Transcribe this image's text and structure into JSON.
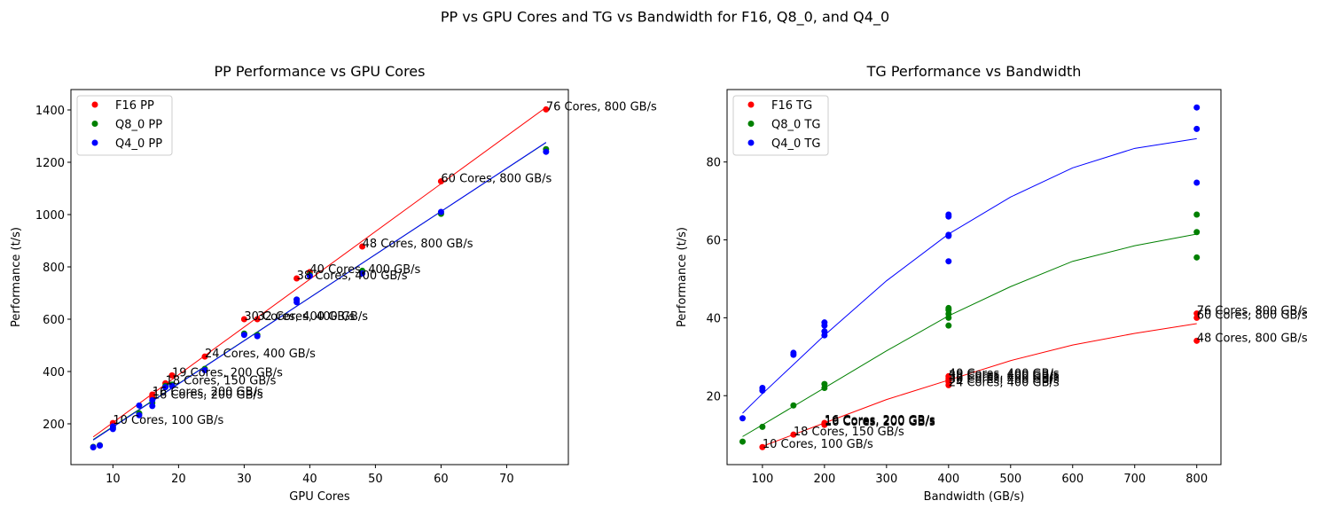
{
  "title": "PP vs GPU Cores and TG vs Bandwidth for F16, Q8_0, and Q4_0",
  "chart_data": [
    {
      "type": "scatter",
      "title": "PP Performance vs GPU Cores",
      "xlabel": "GPU Cores",
      "ylabel": "Performance (t/s)",
      "xlim": [
        3.6,
        79.4
      ],
      "ylim": [
        44,
        1478
      ],
      "xticks": [
        10,
        20,
        30,
        40,
        50,
        60,
        70
      ],
      "yticks": [
        200,
        400,
        600,
        800,
        1000,
        1200,
        1400
      ],
      "legend": "upper left",
      "series": [
        {
          "name": "F16 PP",
          "color": "#ff0000",
          "x": [
            10,
            16,
            16,
            18,
            19,
            24,
            30,
            32,
            38,
            40,
            48,
            60,
            76
          ],
          "values": [
            203,
            312,
            300,
            355,
            385,
            457,
            600,
            600,
            756,
            780,
            878,
            1127,
            1402
          ],
          "labels": [
            "10 Cores, 100 GB/s",
            "16 Cores, 200 GB/s",
            "16 Cores, 200 GB/s",
            "18 Cores, 150 GB/s",
            "19 Cores, 200 GB/s",
            "24 Cores, 400 GB/s",
            "30 Cores, 400 GB/s",
            "32 Cores, 400 GB/s",
            "38 Cores, 400 GB/s",
            "40 Cores, 400 GB/s",
            "48 Cores, 800 GB/s",
            "60 Cores, 800 GB/s",
            "76 Cores, 800 GB/s"
          ]
        },
        {
          "name": "Q8_0 PP",
          "color": "#008000",
          "x": [
            7,
            8,
            10,
            14,
            16,
            18,
            19,
            24,
            30,
            32,
            38,
            40,
            48,
            60,
            76
          ],
          "values": [
            112,
            118,
            185,
            240,
            280,
            345,
            350,
            410,
            545,
            540,
            675,
            770,
            785,
            1003,
            1250
          ]
        },
        {
          "name": "Q4_0 PP",
          "color": "#0000ff",
          "x": [
            7,
            8,
            10,
            10,
            14,
            14,
            16,
            16,
            18,
            19,
            24,
            30,
            32,
            38,
            38,
            40,
            48,
            60,
            76
          ],
          "values": [
            110,
            117,
            180,
            190,
            233,
            270,
            268,
            290,
            340,
            345,
            405,
            540,
            535,
            665,
            675,
            765,
            775,
            1010,
            1240
          ]
        }
      ],
      "fits": [
        {
          "color": "#ff0000",
          "x": [
            7,
            76
          ],
          "values": [
            150,
            1410
          ]
        },
        {
          "color": "#008000",
          "x": [
            7,
            76
          ],
          "values": [
            140,
            1275
          ]
        },
        {
          "color": "#0000ff",
          "x": [
            7,
            76
          ],
          "values": [
            138,
            1276
          ]
        }
      ]
    },
    {
      "type": "scatter",
      "title": "TG Performance vs Bandwidth",
      "xlabel": "Bandwidth (GB/s)",
      "ylabel": "Performance (t/s)",
      "xlim": [
        43,
        839
      ],
      "ylim": [
        2.3,
        98.6
      ],
      "xticks": [
        100,
        200,
        300,
        400,
        500,
        600,
        700,
        800
      ],
      "yticks": [
        20,
        40,
        60,
        80
      ],
      "legend": "upper left",
      "series": [
        {
          "name": "F16 TG",
          "color": "#ff0000",
          "x": [
            100,
            200,
            200,
            150,
            200,
            400,
            400,
            400,
            400,
            400,
            800,
            800,
            800
          ],
          "values": [
            6.8,
            13,
            12.5,
            10,
            12.8,
            22.7,
            23.5,
            24,
            24.5,
            25,
            34.1,
            40,
            41.1
          ],
          "labels": [
            "10 Cores, 100 GB/s",
            "16 Cores, 200 GB/s",
            "16 Cores, 200 GB/s",
            "18 Cores, 150 GB/s",
            "19 Cores, 200 GB/s",
            "24 Cores, 400 GB/s",
            "30 Cores, 400 GB/s",
            "32 Cores, 400 GB/s",
            "38 Cores, 400 GB/s",
            "40 Cores, 400 GB/s",
            "48 Cores, 800 GB/s",
            "60 Cores, 800 GB/s",
            "76 Cores, 800 GB/s"
          ]
        },
        {
          "name": "Q8_0 TG",
          "color": "#008000",
          "x": [
            68,
            100,
            150,
            200,
            200,
            400,
            400,
            400,
            400,
            400,
            800,
            800,
            800
          ],
          "values": [
            8.2,
            12,
            17.5,
            22,
            23,
            38,
            40,
            41,
            42,
            42.5,
            55.5,
            62,
            66.5
          ]
        },
        {
          "name": "Q4_0 TG",
          "color": "#0000ff",
          "x": [
            68,
            100,
            100,
            150,
            150,
            200,
            200,
            200,
            200,
            400,
            400,
            400,
            400,
            400,
            800,
            800,
            800
          ],
          "values": [
            14.2,
            21.3,
            22,
            30.5,
            31,
            35.5,
            36.5,
            38,
            38.8,
            54.5,
            61,
            61.3,
            66,
            66.5,
            74.7,
            88.5,
            94
          ]
        }
      ],
      "fits": [
        {
          "color": "#ff0000",
          "x": [
            100,
            200,
            300,
            400,
            500,
            600,
            700,
            800
          ],
          "values": [
            7,
            13,
            19,
            24,
            29,
            33,
            36,
            38.5
          ]
        },
        {
          "color": "#008000",
          "x": [
            68,
            100,
            200,
            300,
            400,
            500,
            600,
            700,
            800
          ],
          "values": [
            9.5,
            12.5,
            22,
            31.5,
            40.5,
            48,
            54.5,
            58.5,
            61.5
          ]
        },
        {
          "color": "#0000ff",
          "x": [
            68,
            100,
            200,
            300,
            400,
            500,
            600,
            700,
            800
          ],
          "values": [
            15.5,
            20.5,
            35.5,
            49.5,
            61.5,
            71,
            78.5,
            83.5,
            86
          ]
        }
      ]
    }
  ]
}
